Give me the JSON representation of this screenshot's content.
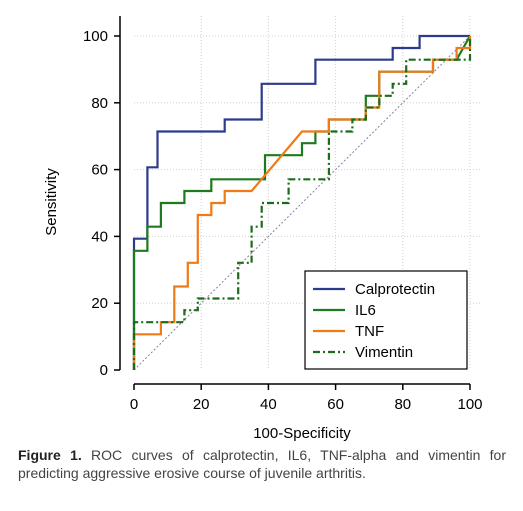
{
  "chart_data": {
    "type": "line",
    "title": "",
    "xlabel": "100-Specificity",
    "ylabel": "Sensitivity",
    "xlim": [
      0,
      100
    ],
    "ylim": [
      0,
      100
    ],
    "xticks": [
      0,
      20,
      40,
      60,
      80,
      100
    ],
    "yticks": [
      0,
      20,
      40,
      60,
      80,
      100
    ],
    "grid": true,
    "legend_position": "bottom-right",
    "diagonal_reference": true,
    "series": [
      {
        "name": "Calprotectin",
        "color": "#2e3a8c",
        "dash": "solid",
        "points": [
          [
            0,
            0
          ],
          [
            0,
            39.3
          ],
          [
            4,
            39.3
          ],
          [
            4,
            60.7
          ],
          [
            7,
            60.7
          ],
          [
            7,
            71.4
          ],
          [
            27,
            71.4
          ],
          [
            27,
            75
          ],
          [
            38,
            75
          ],
          [
            38,
            85.7
          ],
          [
            54,
            85.7
          ],
          [
            54,
            92.9
          ],
          [
            77,
            92.9
          ],
          [
            77,
            96.4
          ],
          [
            85,
            96.4
          ],
          [
            85,
            100
          ],
          [
            100,
            100
          ]
        ]
      },
      {
        "name": "IL6",
        "color": "#1e7a1e",
        "dash": "solid",
        "points": [
          [
            0,
            0
          ],
          [
            0,
            35.7
          ],
          [
            4,
            35.7
          ],
          [
            4,
            42.9
          ],
          [
            8,
            42.9
          ],
          [
            8,
            50
          ],
          [
            15,
            50
          ],
          [
            15,
            53.6
          ],
          [
            23,
            53.6
          ],
          [
            23,
            57.1
          ],
          [
            39,
            57.1
          ],
          [
            39,
            64.3
          ],
          [
            50,
            64.3
          ],
          [
            50,
            67.9
          ],
          [
            54,
            67.9
          ],
          [
            54,
            71.4
          ],
          [
            58,
            71.4
          ],
          [
            58,
            75
          ],
          [
            69,
            75
          ],
          [
            69,
            82.1
          ],
          [
            73,
            82.1
          ],
          [
            73,
            89.3
          ],
          [
            89,
            89.3
          ],
          [
            89,
            92.9
          ],
          [
            96,
            92.9
          ],
          [
            100,
            100
          ]
        ]
      },
      {
        "name": "TNF",
        "color": "#f07a18",
        "dash": "solid",
        "points": [
          [
            0,
            0
          ],
          [
            0,
            10.7
          ],
          [
            8,
            10.7
          ],
          [
            8,
            14.3
          ],
          [
            12,
            14.3
          ],
          [
            12,
            25
          ],
          [
            16,
            25
          ],
          [
            16,
            32.1
          ],
          [
            19,
            32.1
          ],
          [
            19,
            46.4
          ],
          [
            23,
            46.4
          ],
          [
            23,
            50
          ],
          [
            27,
            50
          ],
          [
            27,
            53.6
          ],
          [
            35,
            53.6
          ],
          [
            50,
            71.4
          ],
          [
            58,
            71.4
          ],
          [
            58,
            75
          ],
          [
            69,
            75
          ],
          [
            69,
            78.6
          ],
          [
            73,
            78.6
          ],
          [
            73,
            89.3
          ],
          [
            89,
            89.3
          ],
          [
            89,
            92.9
          ],
          [
            96,
            92.9
          ],
          [
            96,
            96.4
          ],
          [
            100,
            96.4
          ],
          [
            100,
            100
          ]
        ]
      },
      {
        "name": "Vimentin",
        "color": "#1a6b1a",
        "dash": "dash-dot",
        "points": [
          [
            0,
            0
          ],
          [
            0,
            14.3
          ],
          [
            15,
            14.3
          ],
          [
            15,
            17.9
          ],
          [
            19,
            17.9
          ],
          [
            19,
            21.4
          ],
          [
            31,
            21.4
          ],
          [
            31,
            32.1
          ],
          [
            35,
            32.1
          ],
          [
            35,
            42.9
          ],
          [
            38,
            42.9
          ],
          [
            38,
            50
          ],
          [
            46,
            50
          ],
          [
            46,
            57.1
          ],
          [
            58,
            57.1
          ],
          [
            58,
            71.4
          ],
          [
            65,
            71.4
          ],
          [
            65,
            75
          ],
          [
            69,
            75
          ],
          [
            69,
            78.6
          ],
          [
            73,
            78.6
          ],
          [
            73,
            82.1
          ],
          [
            77,
            82.1
          ],
          [
            77,
            85.7
          ],
          [
            81,
            85.7
          ],
          [
            81,
            92.9
          ],
          [
            100,
            92.9
          ],
          [
            100,
            100
          ]
        ]
      }
    ]
  },
  "caption": {
    "label": "Figure 1.",
    "text": " ROC curves of calprotectin, IL6, TNF-alpha and vimentin for predicting aggressive erosive course of juvenile arthritis."
  }
}
